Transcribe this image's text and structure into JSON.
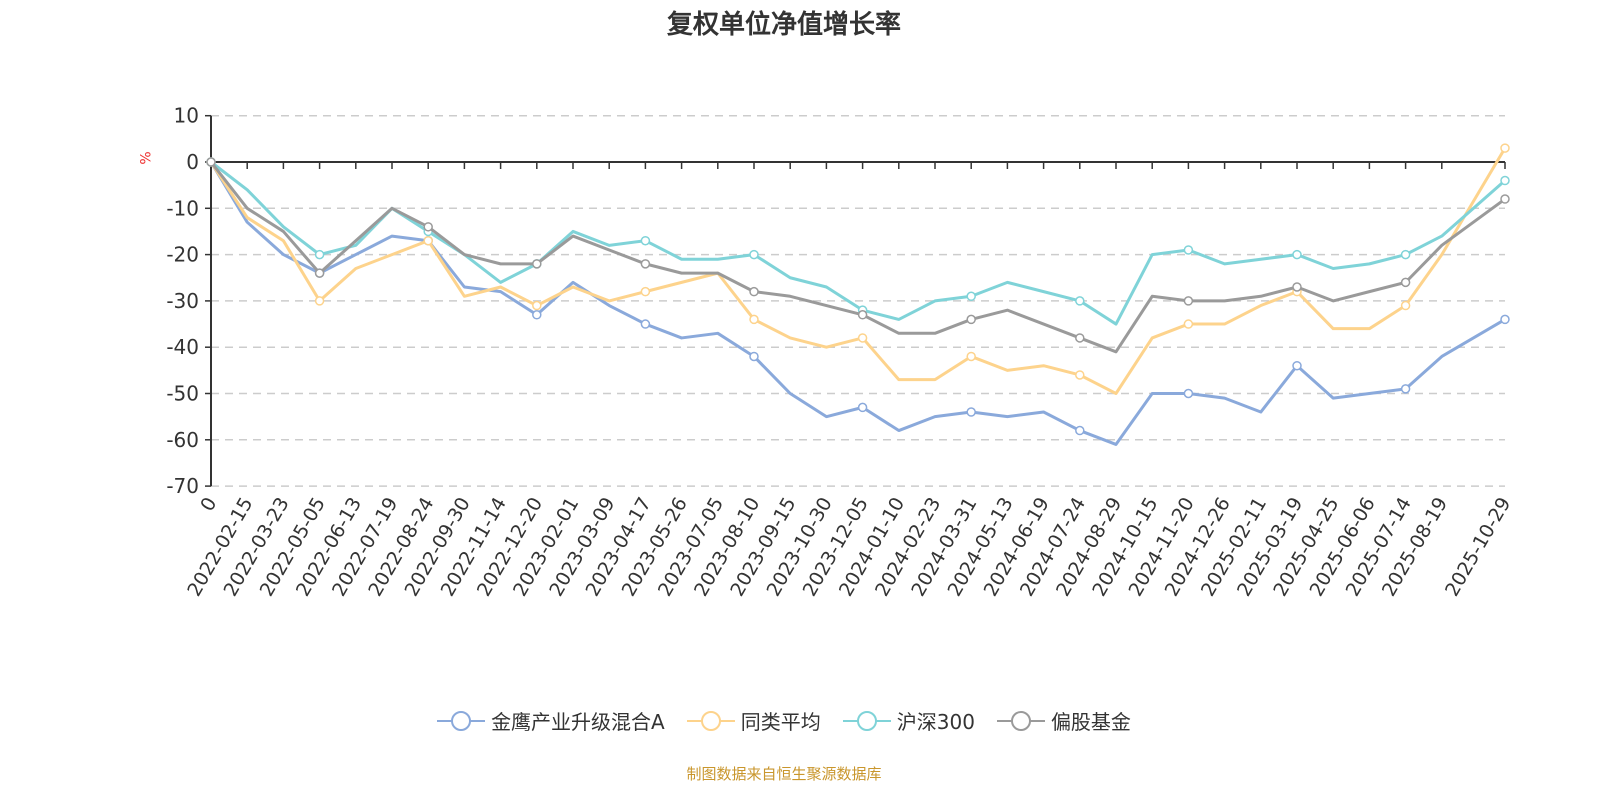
{
  "chart_data": {
    "type": "line",
    "title": "复权单位净值增长率",
    "ylabel": "%",
    "ylim": [
      -70,
      10
    ],
    "yticks": [
      10,
      0,
      -10,
      -20,
      -30,
      -40,
      -50,
      -60,
      -70
    ],
    "grid": true,
    "legend_position": "bottom",
    "x": [
      "0",
      "2022-02-15",
      "2022-03-23",
      "2022-05-05",
      "2022-06-13",
      "2022-07-19",
      "2022-08-24",
      "2022-09-30",
      "2022-11-14",
      "2022-12-20",
      "2023-02-01",
      "2023-03-09",
      "2023-04-17",
      "2023-05-26",
      "2023-07-05",
      "2023-08-10",
      "2023-09-15",
      "2023-10-30",
      "2023-12-05",
      "2024-01-10",
      "2024-02-23",
      "2024-03-31",
      "2024-05-13",
      "2024-06-19",
      "2024-07-24",
      "2024-08-29",
      "2024-10-15",
      "2024-11-20",
      "2024-12-26",
      "2025-02-11",
      "2025-03-19",
      "2025-04-25",
      "2025-06-06",
      "2025-07-14",
      "2025-08-19",
      "2025-10-29"
    ],
    "series": [
      {
        "name": "金鹰产业升级混合A",
        "color": "#8aa9db",
        "values": [
          0,
          -13,
          -20,
          -24,
          -20,
          -16,
          -17,
          -27,
          -28,
          -33,
          -26,
          -31,
          -35,
          -38,
          -37,
          -42,
          -50,
          -55,
          -53,
          -58,
          -55,
          -54,
          -55,
          -54,
          -58,
          -61,
          -50,
          -50,
          -51,
          -54,
          -44,
          -51,
          -50,
          -49,
          -42,
          -34
        ]
      },
      {
        "name": "同类平均",
        "color": "#fdd38c",
        "values": [
          0,
          -12,
          -17,
          -30,
          -23,
          -20,
          -17,
          -29,
          -27,
          -31,
          -27,
          -30,
          -28,
          -26,
          -24,
          -34,
          -38,
          -40,
          -38,
          -47,
          -47,
          -42,
          -45,
          -44,
          -46,
          -50,
          -38,
          -35,
          -35,
          -31,
          -28,
          -36,
          -36,
          -31,
          -20,
          3
        ]
      },
      {
        "name": "沪深300",
        "color": "#7fd3d8",
        "values": [
          0,
          -6,
          -14,
          -20,
          -18,
          -10,
          -15,
          -20,
          -26,
          -22,
          -15,
          -18,
          -17,
          -21,
          -21,
          -20,
          -25,
          -27,
          -32,
          -34,
          -30,
          -29,
          -26,
          -28,
          -30,
          -35,
          -20,
          -19,
          -22,
          -21,
          -20,
          -23,
          -22,
          -20,
          -16,
          -4
        ]
      },
      {
        "name": "偏股基金",
        "color": "#9a9a9a",
        "values": [
          0,
          -10,
          -15,
          -24,
          -17,
          -10,
          -14,
          -20,
          -22,
          -22,
          -16,
          -19,
          -22,
          -24,
          -24,
          -28,
          -29,
          -31,
          -33,
          -37,
          -37,
          -34,
          -32,
          -35,
          -38,
          -41,
          -29,
          -30,
          -30,
          -29,
          -27,
          -30,
          -28,
          -26,
          -18,
          -8
        ]
      }
    ],
    "source": "制图数据来自恒生聚源数据库"
  }
}
